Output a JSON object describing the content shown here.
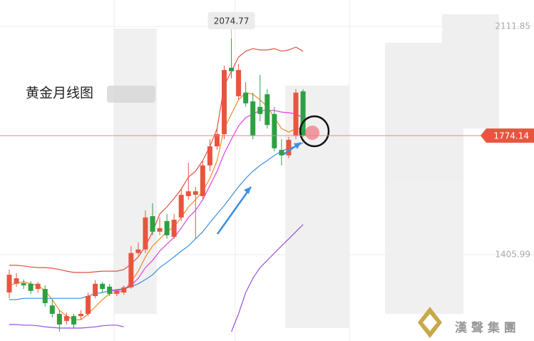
{
  "chart_data": {
    "type": "candlestick",
    "title": "黄金月线图",
    "open": [
      1289,
      1316,
      1318,
      1316,
      1300,
      1300,
      1249,
      1223,
      1201,
      1216,
      1216,
      1223,
      1278,
      1316,
      1307,
      1285,
      1289,
      1305,
      1411,
      1422,
      1525,
      1477,
      1510,
      1461,
      1521,
      1587,
      1591,
      1587,
      1682,
      1741,
      1779,
      1984,
      1896,
      1907,
      1880,
      1863,
      1902,
      1841,
      1730,
      1713,
      1775,
      1911
    ],
    "high": [
      1360,
      1349,
      1329,
      1324,
      1322,
      1311,
      1267,
      1234,
      1227,
      1223,
      1234,
      1289,
      1327,
      1322,
      1316,
      1300,
      1311,
      1433,
      1444,
      1543,
      1565,
      1521,
      1532,
      1532,
      1609,
      1690,
      1616,
      1697,
      1763,
      1796,
      1990,
      2074.77,
      1995,
      1940,
      1907,
      1962,
      1918,
      1863,
      1763,
      1770,
      1918,
      1918
    ],
    "low": [
      1271,
      1307,
      1300,
      1285,
      1289,
      1245,
      1212,
      1168,
      1190,
      1179,
      1205,
      1216,
      1271,
      1289,
      1278,
      1278,
      1282,
      1300,
      1404,
      1411,
      1466,
      1466,
      1455,
      1455,
      1510,
      1576,
      1455,
      1576,
      1664,
      1730,
      1763,
      1951,
      1885,
      1863,
      1763,
      1819,
      1796,
      1726,
      1682,
      1704,
      1763,
      1770
    ],
    "close": [
      1344,
      1333,
      1311,
      1294,
      1316,
      1256,
      1223,
      1190,
      1216,
      1190,
      1223,
      1278,
      1316,
      1300,
      1285,
      1294,
      1305,
      1411,
      1422,
      1521,
      1477,
      1488,
      1466,
      1514,
      1591,
      1602,
      1602,
      1682,
      1741,
      1779,
      1977,
      1973,
      1977,
      1874,
      1775,
      1841,
      1807,
      1735,
      1713,
      1761,
      1907,
      1774.14
    ],
    "up_color": "#e8553f",
    "down_color": "#2ea043",
    "lines": [
      {
        "color": "#e0523d",
        "values": [
          1373,
          1373,
          1371,
          1368,
          1366,
          1366,
          1364,
          1360,
          1355,
          1351,
          1351,
          1351,
          1353,
          1355,
          1355,
          1355,
          1360,
          1377,
          1399,
          1432,
          1477,
          1532,
          1554,
          1580,
          1609,
          1646,
          1664,
          1697,
          1741,
          1796,
          1929,
          1973,
          2017,
          2035,
          2043,
          2039,
          2039,
          2043,
          2035,
          2039,
          2048,
          2035
        ]
      },
      {
        "color": "#f08a24",
        "values": [
          1311,
          1318,
          1322,
          1316,
          1311,
          1294,
          1267,
          1234,
          1216,
          1205,
          1205,
          1223,
          1245,
          1267,
          1285,
          1289,
          1294,
          1322,
          1355,
          1399,
          1433,
          1455,
          1477,
          1492,
          1521,
          1554,
          1576,
          1602,
          1642,
          1697,
          1796,
          1841,
          1885,
          1907,
          1902,
          1885,
          1863,
          1830,
          1796,
          1785,
          1796,
          1796
        ]
      },
      {
        "color": "#e040e0",
        "values": [
          null,
          null,
          null,
          null,
          null,
          null,
          null,
          null,
          null,
          null,
          null,
          null,
          null,
          null,
          1294,
          1294,
          1300,
          1311,
          1333,
          1366,
          1388,
          1417,
          1439,
          1459,
          1488,
          1521,
          1543,
          1576,
          1620,
          1664,
          1719,
          1763,
          1804,
          1830,
          1841,
          1852,
          1852,
          1852,
          1847,
          1845,
          1841,
          1830
        ]
      },
      {
        "color": "#3b8fe0",
        "values": [
          1267,
          1267,
          1271,
          1271,
          1271,
          1271,
          1271,
          1271,
          1271,
          1271,
          1271,
          1278,
          1285,
          1289,
          1294,
          1298,
          1300,
          1307,
          1316,
          1329,
          1344,
          1366,
          1382,
          1399,
          1417,
          1433,
          1455,
          1477,
          1505,
          1532,
          1558,
          1587,
          1616,
          1642,
          1664,
          1682,
          1697,
          1713,
          1726,
          1735,
          1741,
          1752
        ]
      },
      {
        "color": "#9a4fe0",
        "values": [
          1190,
          1190,
          1188,
          1188,
          1186,
          1183,
          1181,
          1179,
          1179,
          1179,
          1179,
          1181,
          1183,
          1186,
          1188,
          1188,
          1183,
          null,
          null,
          null,
          null,
          null,
          null,
          null,
          null,
          null,
          null,
          null,
          null,
          null,
          null,
          1168,
          1223,
          1289,
          1333,
          1366,
          1388,
          1411,
          1433,
          1455,
          1477,
          1499
        ]
      }
    ],
    "ylim": [
      1139,
      2193.5
    ],
    "yticks": [
      2111.85,
      1405.99
    ],
    "grid": true
  },
  "watermark": "漢 聲 集 團"
}
